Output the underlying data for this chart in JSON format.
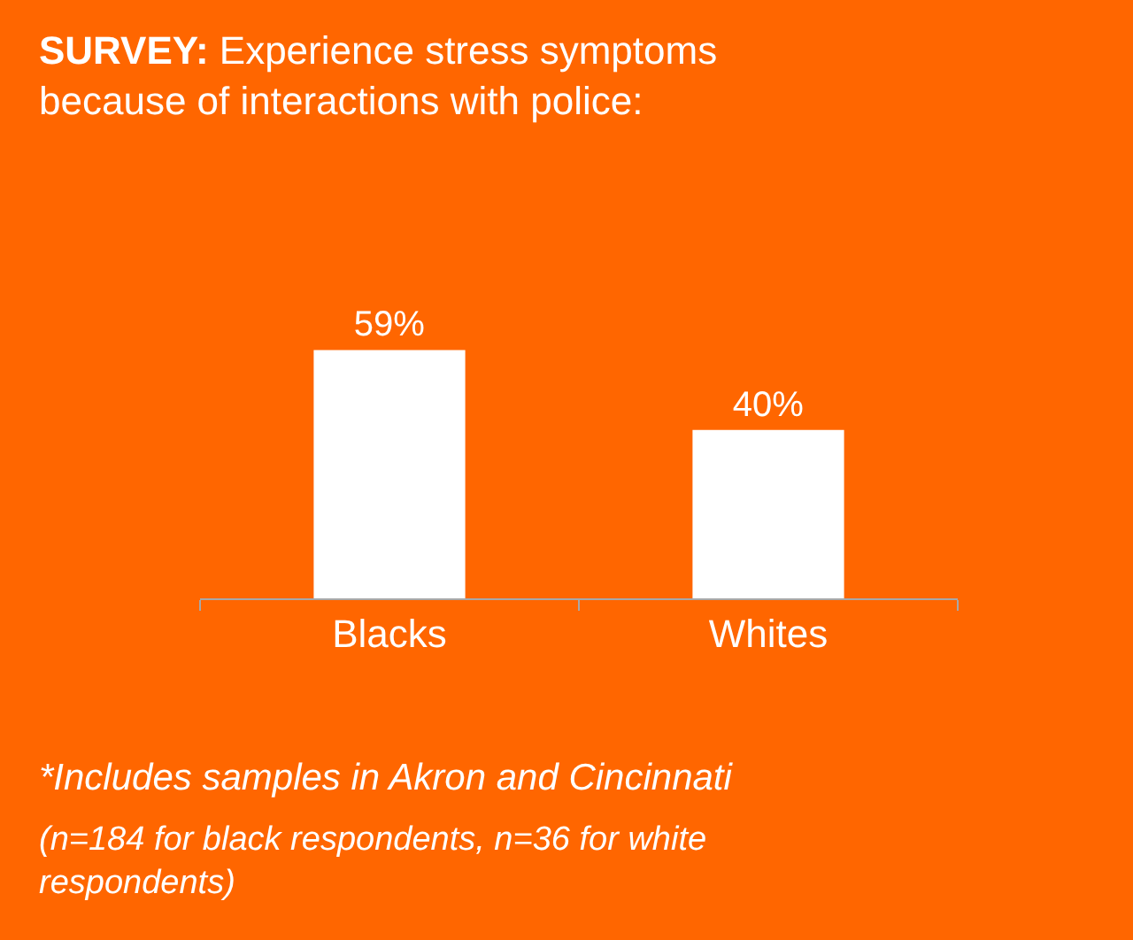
{
  "chart_data": {
    "type": "bar",
    "title": "SURVEY: Experience stress symptoms because of interactions with police:",
    "categories": [
      "Blacks",
      "Whites"
    ],
    "values": [
      59,
      40
    ],
    "color": "#ffffff",
    "data_labels": true,
    "value_labels": [
      "59%",
      "40%"
    ],
    "grid": false,
    "legend": false,
    "annotations": [
      "*Includes samples in Akron and Cincinnati",
      "(n=184 for black respondents, n=36 for white respondents)"
    ]
  }
}
